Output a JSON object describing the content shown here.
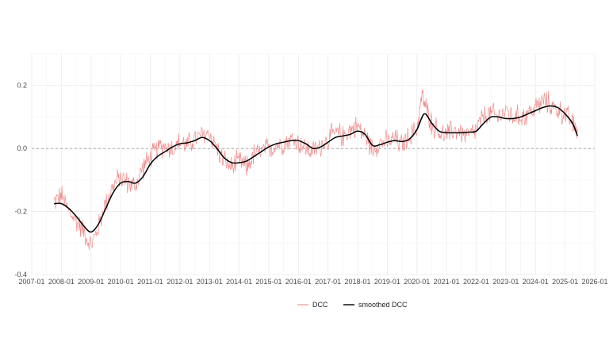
{
  "chart_data": {
    "type": "line",
    "title": "",
    "xlabel": "",
    "ylabel": "",
    "xlim": [
      "2007-01",
      "2026-01"
    ],
    "ylim": [
      -0.4,
      0.3
    ],
    "grid": true,
    "legend_position": "bottom",
    "reference_line": {
      "y": 0.0,
      "style": "dashed"
    },
    "x_ticks": [
      "2007-01",
      "2008-01",
      "2009-01",
      "2010-01",
      "2011-01",
      "2012-01",
      "2013-01",
      "2014-01",
      "2015-01",
      "2016-01",
      "2017-01",
      "2018-01",
      "2019-01",
      "2020-01",
      "2021-01",
      "2022-01",
      "2023-01",
      "2024-01",
      "2025-01",
      "2026-01"
    ],
    "y_ticks": [
      {
        "value": 0.2,
        "label": "0.2"
      },
      {
        "value": 0.0,
        "label": "0.0"
      },
      {
        "value": -0.2,
        "label": "-0.2"
      },
      {
        "value": -0.4,
        "label": "-0.4"
      }
    ],
    "series": [
      {
        "name": "DCC",
        "color": "#f08080",
        "style": "thin-noisy",
        "noise_amplitude": 0.03,
        "x": [
          "2007-10",
          "2008-01",
          "2008-04",
          "2008-07",
          "2008-10",
          "2009-01",
          "2009-04",
          "2009-07",
          "2009-10",
          "2010-01",
          "2010-04",
          "2010-07",
          "2010-10",
          "2011-01",
          "2011-04",
          "2011-07",
          "2011-10",
          "2012-01",
          "2012-04",
          "2012-07",
          "2012-10",
          "2013-01",
          "2013-04",
          "2013-07",
          "2013-10",
          "2014-01",
          "2014-04",
          "2014-07",
          "2014-10",
          "2015-01",
          "2015-04",
          "2015-07",
          "2015-10",
          "2016-01",
          "2016-04",
          "2016-07",
          "2016-10",
          "2017-01",
          "2017-04",
          "2017-07",
          "2017-10",
          "2018-01",
          "2018-04",
          "2018-07",
          "2018-10",
          "2019-01",
          "2019-04",
          "2019-07",
          "2019-10",
          "2020-01",
          "2020-03",
          "2020-05",
          "2020-07",
          "2020-10",
          "2021-01",
          "2021-04",
          "2021-07",
          "2021-10",
          "2022-01",
          "2022-04",
          "2022-07",
          "2022-10",
          "2023-01",
          "2023-04",
          "2023-07",
          "2023-10",
          "2024-01",
          "2024-04",
          "2024-07",
          "2024-10",
          "2025-01",
          "2025-04",
          "2025-06"
        ],
        "y": [
          -0.17,
          -0.15,
          -0.2,
          -0.23,
          -0.26,
          -0.31,
          -0.25,
          -0.17,
          -0.12,
          -0.09,
          -0.11,
          -0.12,
          -0.06,
          -0.03,
          0.0,
          0.01,
          0.0,
          0.02,
          0.01,
          0.03,
          0.04,
          0.05,
          0.0,
          -0.04,
          -0.06,
          -0.04,
          -0.06,
          -0.02,
          -0.01,
          0.0,
          0.01,
          0.02,
          0.03,
          0.02,
          0.0,
          -0.01,
          0.01,
          0.03,
          0.05,
          0.04,
          0.06,
          0.07,
          0.04,
          0.0,
          0.02,
          0.02,
          0.03,
          0.01,
          0.04,
          0.06,
          0.17,
          0.12,
          0.08,
          0.05,
          0.04,
          0.06,
          0.05,
          0.04,
          0.06,
          0.1,
          0.11,
          0.1,
          0.12,
          0.1,
          0.1,
          0.11,
          0.13,
          0.15,
          0.14,
          0.12,
          0.11,
          0.08,
          0.06
        ]
      },
      {
        "name": "smoothed DCC",
        "color": "#000000",
        "style": "smooth",
        "x": [
          "2007-10",
          "2008-01",
          "2008-04",
          "2008-07",
          "2008-10",
          "2009-01",
          "2009-04",
          "2009-07",
          "2009-10",
          "2010-01",
          "2010-04",
          "2010-07",
          "2010-10",
          "2011-01",
          "2011-04",
          "2011-07",
          "2011-10",
          "2012-01",
          "2012-04",
          "2012-07",
          "2012-10",
          "2013-01",
          "2013-04",
          "2013-07",
          "2013-10",
          "2014-01",
          "2014-04",
          "2014-07",
          "2014-10",
          "2015-01",
          "2015-04",
          "2015-07",
          "2015-10",
          "2016-01",
          "2016-04",
          "2016-07",
          "2016-10",
          "2017-01",
          "2017-04",
          "2017-07",
          "2017-10",
          "2018-01",
          "2018-04",
          "2018-07",
          "2018-10",
          "2019-01",
          "2019-04",
          "2019-07",
          "2019-10",
          "2020-01",
          "2020-04",
          "2020-07",
          "2020-10",
          "2021-01",
          "2021-04",
          "2021-07",
          "2021-10",
          "2022-01",
          "2022-04",
          "2022-07",
          "2022-10",
          "2023-01",
          "2023-04",
          "2023-07",
          "2023-10",
          "2024-01",
          "2024-04",
          "2024-07",
          "2024-10",
          "2025-01",
          "2025-04",
          "2025-06"
        ],
        "y": [
          -0.175,
          -0.175,
          -0.19,
          -0.215,
          -0.245,
          -0.265,
          -0.24,
          -0.19,
          -0.14,
          -0.11,
          -0.105,
          -0.11,
          -0.09,
          -0.05,
          -0.025,
          -0.01,
          0.005,
          0.015,
          0.018,
          0.025,
          0.035,
          0.025,
          0.0,
          -0.03,
          -0.045,
          -0.045,
          -0.04,
          -0.025,
          -0.01,
          0.005,
          0.015,
          0.02,
          0.025,
          0.025,
          0.015,
          0.0,
          0.005,
          0.02,
          0.035,
          0.04,
          0.045,
          0.055,
          0.045,
          0.01,
          0.012,
          0.02,
          0.025,
          0.022,
          0.03,
          0.06,
          0.11,
          0.08,
          0.055,
          0.05,
          0.05,
          0.05,
          0.052,
          0.055,
          0.08,
          0.1,
          0.1,
          0.095,
          0.095,
          0.1,
          0.11,
          0.12,
          0.13,
          0.135,
          0.13,
          0.11,
          0.08,
          0.04
        ]
      }
    ]
  }
}
